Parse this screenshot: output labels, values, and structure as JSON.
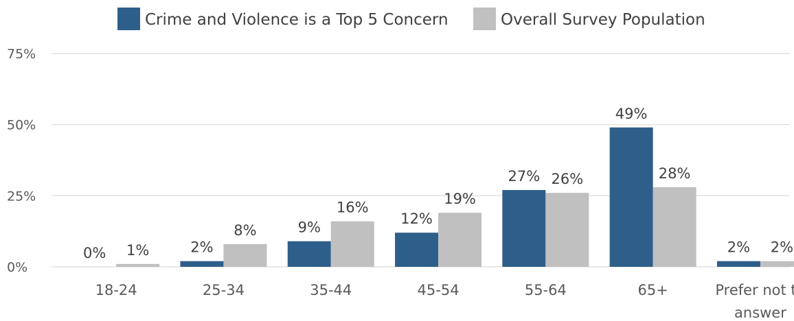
{
  "chart_data": {
    "type": "bar",
    "title": "",
    "xlabel": "",
    "ylabel": "",
    "categories": [
      "18-24",
      "25-34",
      "35-44",
      "45-54",
      "55-64",
      "65+",
      "Prefer not to answer"
    ],
    "category_lines": [
      [
        "18-24"
      ],
      [
        "25-34"
      ],
      [
        "35-44"
      ],
      [
        "45-54"
      ],
      [
        "55-64"
      ],
      [
        "65+"
      ],
      [
        "Prefer not to",
        "answer"
      ]
    ],
    "series": [
      {
        "name": "Crime and Violence is a Top 5 Concern",
        "color": "#2e5f8a",
        "values": [
          0,
          2,
          9,
          12,
          27,
          49,
          2
        ],
        "labels": [
          "0%",
          "2%",
          "9%",
          "12%",
          "27%",
          "49%",
          "2%"
        ]
      },
      {
        "name": "Overall Survey Population",
        "color": "#c0c0c0",
        "values": [
          1,
          8,
          16,
          19,
          26,
          28,
          2
        ],
        "labels": [
          "1%",
          "8%",
          "16%",
          "19%",
          "26%",
          "28%",
          "2%"
        ]
      }
    ],
    "ylim": [
      0,
      75
    ],
    "yticks": [
      0,
      25,
      50,
      75
    ],
    "ytick_labels": [
      "0%",
      "25%",
      "50%",
      "75%"
    ],
    "grid": true,
    "legend_position": "top"
  }
}
